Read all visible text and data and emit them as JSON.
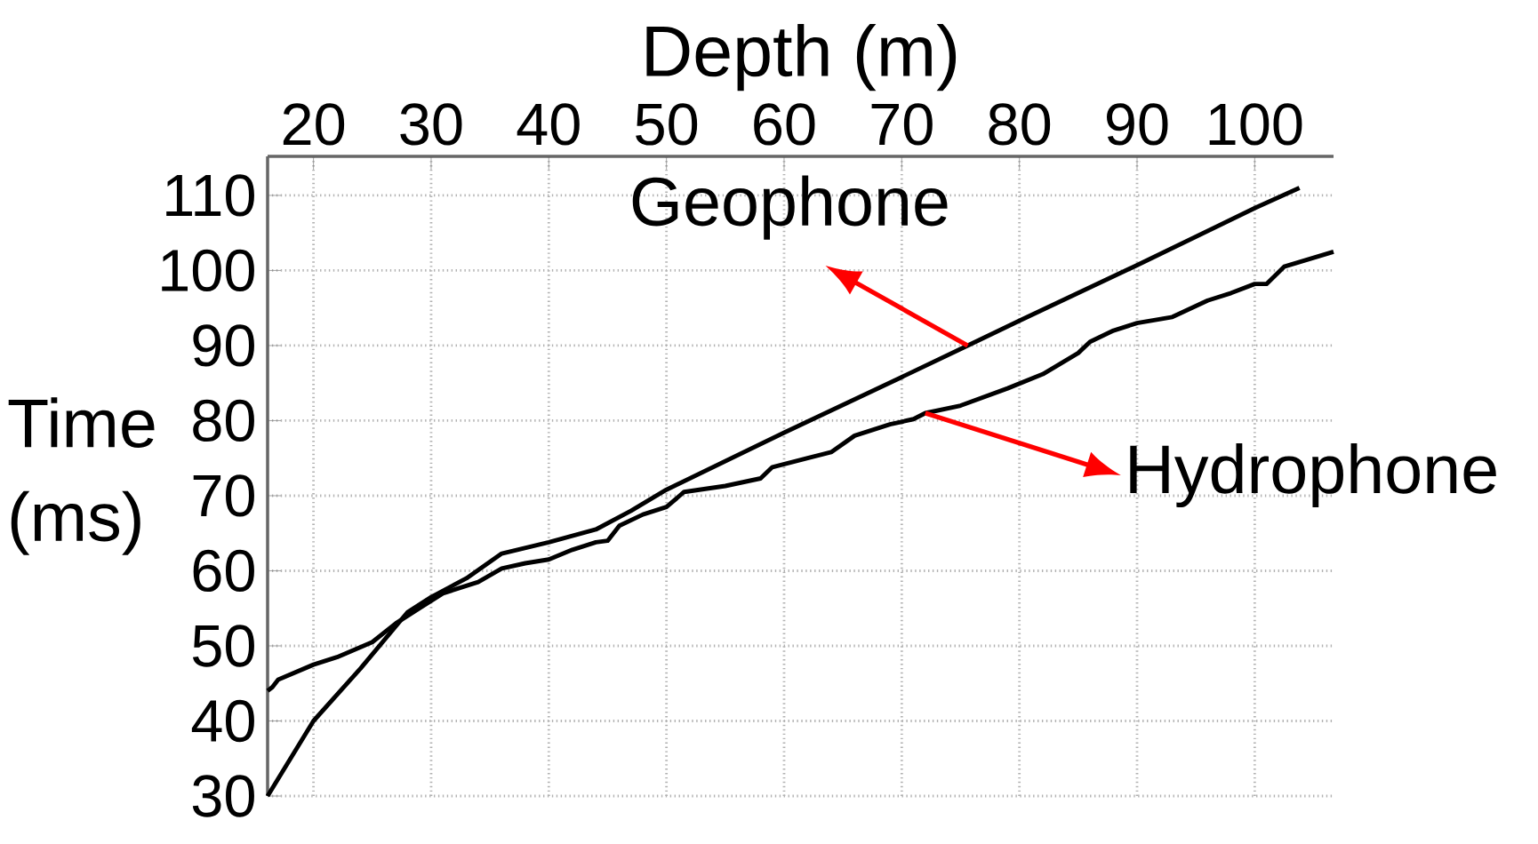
{
  "chart_data": {
    "type": "line",
    "xlabel": "Depth (m)",
    "ylabel": "Time (ms)",
    "xlim": [
      16.1,
      106.7
    ],
    "ylim": [
      30,
      115.2
    ],
    "xticks": [
      20,
      30,
      40,
      50,
      60,
      70,
      80,
      90,
      100
    ],
    "yticks": [
      30,
      40,
      50,
      60,
      70,
      80,
      90,
      100,
      110
    ],
    "grid": true,
    "series": [
      {
        "name": "Geophone",
        "color": "#000000",
        "x": [
          16.1,
          20,
          24,
          28,
          30,
          33,
          36,
          40,
          44,
          47,
          50,
          60,
          70,
          75.6,
          80,
          90,
          100,
          103.8
        ],
        "values": [
          30,
          40,
          47,
          54.5,
          56.5,
          59,
          62.3,
          63.8,
          65.5,
          68,
          70.8,
          78.4,
          85.8,
          90,
          93.3,
          100.7,
          108.3,
          111
        ]
      },
      {
        "name": "Hydrophone",
        "color": "#000000",
        "x": [
          16.1,
          16.5,
          17,
          20,
          22,
          25,
          27,
          29,
          31,
          34,
          36,
          38,
          40,
          42,
          44,
          45,
          46,
          48,
          50,
          51.5,
          55,
          58,
          59,
          62,
          64,
          66,
          69,
          71,
          72,
          75,
          79,
          82,
          85,
          86,
          88,
          90,
          93,
          96,
          98,
          100,
          101,
          102.5,
          106.7
        ],
        "values": [
          44,
          44.5,
          45.5,
          47.5,
          48.5,
          50.5,
          53,
          55,
          57,
          58.5,
          60.3,
          61,
          61.5,
          62.8,
          63.8,
          64,
          66,
          67.5,
          68.5,
          70.5,
          71.3,
          72.3,
          73.8,
          75,
          75.8,
          78,
          79.5,
          80.2,
          81,
          82,
          84.3,
          86.2,
          89,
          90.5,
          92,
          93,
          93.8,
          96,
          97,
          98.2,
          98.2,
          100.5,
          102.5
        ]
      }
    ]
  }
}
